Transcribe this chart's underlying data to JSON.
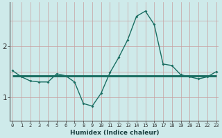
{
  "xlabel": "Humidex (Indice chaleur)",
  "bg_color": "#ceeaea",
  "line_color": "#1a6e62",
  "grid_color": "#c8a0a0",
  "x_values": [
    0,
    1,
    2,
    3,
    4,
    5,
    6,
    7,
    8,
    9,
    10,
    11,
    12,
    13,
    14,
    15,
    16,
    17,
    18,
    19,
    20,
    21,
    22,
    23
  ],
  "y_zigzag": [
    1.52,
    1.4,
    1.32,
    1.3,
    1.3,
    1.46,
    1.42,
    1.3,
    0.88,
    0.83,
    1.08,
    1.48,
    1.78,
    2.12,
    2.58,
    2.68,
    2.42,
    1.65,
    1.62,
    1.44,
    1.4,
    1.36,
    1.4,
    1.5
  ],
  "y_flat": [
    1.42,
    1.42,
    1.42,
    1.42,
    1.42,
    1.42,
    1.42,
    1.42,
    1.42,
    1.42,
    1.42,
    1.42,
    1.42,
    1.42,
    1.42,
    1.42,
    1.42,
    1.42,
    1.42,
    1.42,
    1.42,
    1.42,
    1.42,
    1.42
  ],
  "yticks": [
    1,
    2
  ],
  "xticks": [
    0,
    1,
    2,
    3,
    4,
    5,
    6,
    7,
    8,
    9,
    10,
    11,
    12,
    13,
    14,
    15,
    16,
    17,
    18,
    19,
    20,
    21,
    22,
    23
  ],
  "ylim": [
    0.55,
    2.85
  ],
  "xlim": [
    -0.3,
    23.3
  ]
}
